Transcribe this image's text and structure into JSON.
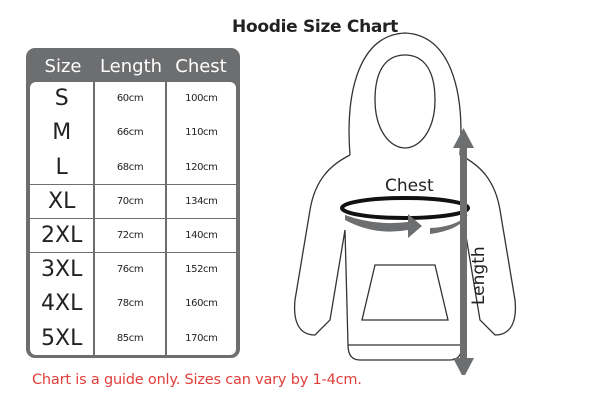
{
  "title": "Hoodie Size Chart",
  "table": {
    "headers": [
      "Size",
      "Length",
      "Chest"
    ],
    "rows": [
      [
        "S",
        "60cm",
        "100cm"
      ],
      [
        "M",
        "66cm",
        "110cm"
      ],
      [
        "L",
        "68cm",
        "120cm"
      ],
      [
        "XL",
        "70cm",
        "134cm"
      ],
      [
        "2XL",
        "72cm",
        "140cm"
      ],
      [
        "3XL",
        "76cm",
        "152cm"
      ],
      [
        "4XL",
        "78cm",
        "160cm"
      ],
      [
        "5XL",
        "85cm",
        "170cm"
      ]
    ]
  },
  "diagram": {
    "chest_label": "Chest",
    "length_label": "Length",
    "arrow_color": "#6d6e70"
  },
  "note": "Chart is a guide only. Sizes can vary by 1-4cm.",
  "colors": {
    "panel": "#6d6e70",
    "note": "#e0403b"
  }
}
